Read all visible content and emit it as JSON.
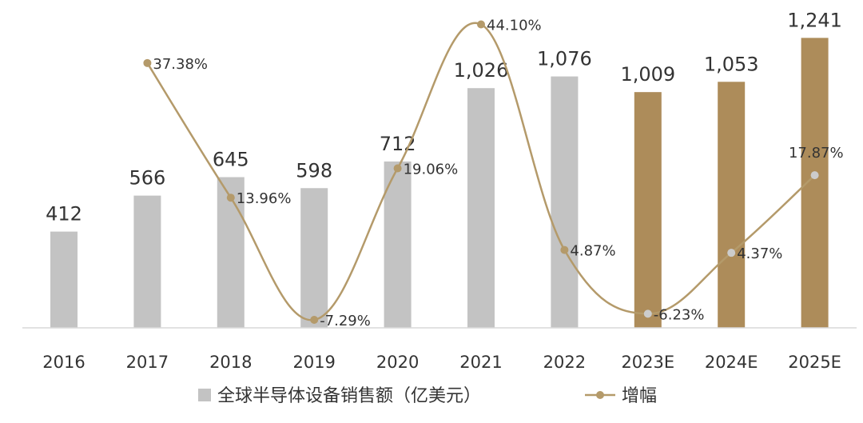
{
  "chart_data": {
    "type": "bar",
    "categories": [
      "2016",
      "2017",
      "2018",
      "2019",
      "2020",
      "2021",
      "2022",
      "2023E",
      "2024E",
      "2025E"
    ],
    "series": [
      {
        "name": "全球半导体设备销售额（亿美元）",
        "type": "bar",
        "values": [
          412,
          566,
          645,
          598,
          712,
          1026,
          1076,
          1009,
          1053,
          1241
        ],
        "value_labels": [
          "412",
          "566",
          "645",
          "598",
          "712",
          "1,026",
          "1,076",
          "1,009",
          "1,053",
          "1,241"
        ],
        "colors": [
          "#c3c3c3",
          "#c3c3c3",
          "#c3c3c3",
          "#c3c3c3",
          "#c3c3c3",
          "#c3c3c3",
          "#c3c3c3",
          "#ad8c5a",
          "#ad8c5a",
          "#ad8c5a"
        ]
      },
      {
        "name": "增幅",
        "type": "line",
        "smooth": true,
        "values": [
          null,
          37.38,
          13.96,
          -7.29,
          19.06,
          44.1,
          4.87,
          -6.23,
          4.37,
          17.87
        ],
        "value_labels": [
          "",
          "37.38%",
          "13.96%",
          "-7.29%",
          "19.06%",
          "44.10%",
          "4.87%",
          "-6.23%",
          "4.37%",
          "17.87%"
        ],
        "color": "#b49a6a",
        "marker_colors": [
          "",
          "#b49a6a",
          "#b49a6a",
          "#b49a6a",
          "#b49a6a",
          "#b49a6a",
          "#b49a6a",
          "#cccccc",
          "#cccccc",
          "#cccccc"
        ]
      }
    ],
    "bar_ylim": [
      0,
      1300
    ],
    "line_ylim": [
      -10,
      50
    ],
    "legend_position": "bottom",
    "grid": false
  }
}
